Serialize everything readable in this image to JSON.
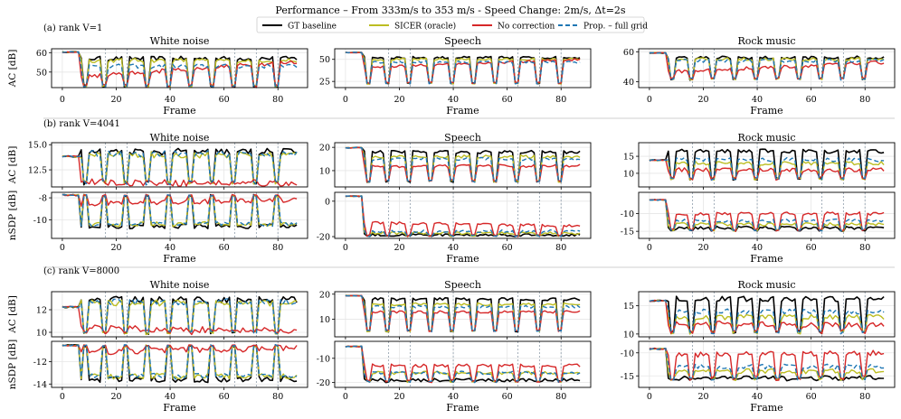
{
  "title": "Performance – From 333m/s to 353 m/s - Speed Change: 2m/s, Δt=2s",
  "legend": [
    {
      "label": "GT baseline",
      "color": "#000000",
      "dash": false
    },
    {
      "label": "SICER (oracle)",
      "color": "#bcbd22",
      "dash": false
    },
    {
      "label": "No correction",
      "color": "#d62728",
      "dash": false
    },
    {
      "label": "Prop. – full grid",
      "color": "#1f77b4",
      "dash": true
    }
  ],
  "xlabel": "Frame",
  "xticks": [
    0,
    20,
    40,
    60,
    80
  ],
  "chart_data": {
    "type": "line",
    "frames": 88,
    "xlim": [
      -4,
      91
    ],
    "sections": [
      {
        "label": "(a) rank V=1",
        "rows": [
          {
            "ylabel": "AC [dB]",
            "panels": [
              {
                "title": "White noise",
                "ylim": [
                  42,
                  62
                ],
                "yticks": [
                  50,
                  60
                ],
                "gt": 57,
                "prop": 53,
                "noc": 47,
                "sic": 56,
                "low": 42,
                "high": 60.5,
                "end": 55.5,
                "trend": 1
              },
              {
                "title": "Speech",
                "ylim": [
                  18,
                  62
                ],
                "yticks": [
                  25,
                  50
                ],
                "gt": 52,
                "prop": 47,
                "noc": 40,
                "sic": 50,
                "low": 22,
                "high": 58,
                "end": 50,
                "trend": 0
              },
              {
                "title": "Rock music",
                "ylim": [
                  36,
                  62
                ],
                "yticks": [
                  40,
                  60
                ],
                "gt": 56,
                "prop": 54,
                "noc": 46,
                "sic": 55,
                "low": 41,
                "high": 59.5,
                "end": 53,
                "trend": 1
              }
            ]
          }
        ]
      },
      {
        "label": "(b) rank V=4041",
        "rows": [
          {
            "ylabel": "AC [dB]",
            "panels": [
              {
                "title": "White noise",
                "ylim": [
                  10.8,
                  15.2
                ],
                "yticks": [
                  12.5,
                  15.0
                ],
                "gt": 14.3,
                "prop": 14.1,
                "noc": 11.3,
                "sic": 14.0,
                "low": 11.0,
                "high": 13.9,
                "end": 11.1,
                "trend": 1
              },
              {
                "title": "Speech",
                "ylim": [
                  3,
                  22
                ],
                "yticks": [
                  10,
                  20
                ],
                "gt": 18,
                "prop": 15,
                "noc": 12,
                "sic": 16,
                "low": 5,
                "high": 20,
                "end": 12,
                "trend": 0
              },
              {
                "title": "Rock music",
                "ylim": [
                  6,
                  19
                ],
                "yticks": [
                  10,
                  15
                ],
                "gt": 16.5,
                "prop": 14,
                "noc": 11,
                "sic": 13,
                "low": 8,
                "high": 14,
                "end": 11,
                "trend": 0
              }
            ]
          },
          {
            "ylabel": "nSDP [dB]",
            "panels": [
              {
                "title": "",
                "ylim": [
                  -11.7,
                  -7.5
                ],
                "yticks": [
                  -10,
                  -8
                ],
                "gt": -10.6,
                "prop": -10.4,
                "noc": -8.6,
                "sic": -10.4,
                "low": -11.4,
                "high": -7.7,
                "end": -8.2,
                "trend": -1
              },
              {
                "title": "",
                "ylim": [
                  -21,
                  5
                ],
                "yticks": [
                  -20,
                  0
                ],
                "gt": -19,
                "prop": -17,
                "noc": -12,
                "sic": -18,
                "low": -20,
                "high": 3,
                "end": -14,
                "trend": 0
              },
              {
                "title": "",
                "ylim": [
                  -17,
                  -4
                ],
                "yticks": [
                  -15,
                  -10
                ],
                "gt": -14,
                "prop": -12,
                "noc": -10,
                "sic": -13,
                "low": -15,
                "high": -6,
                "end": -10,
                "trend": 0
              }
            ]
          }
        ]
      },
      {
        "label": "(c) rank V=8000",
        "rows": [
          {
            "ylabel": "AC [dB]",
            "panels": [
              {
                "title": "White noise",
                "ylim": [
                  9.6,
                  13.6
                ],
                "yticks": [
                  10,
                  12
                ],
                "gt": 12.9,
                "prop": 12.7,
                "noc": 10.4,
                "sic": 12.6,
                "low": 9.8,
                "high": 12.3,
                "end": 10.1,
                "trend": 1
              },
              {
                "title": "Speech",
                "ylim": [
                  3,
                  21
                ],
                "yticks": [
                  10,
                  20
                ],
                "gt": 18,
                "prop": 15,
                "noc": 13,
                "sic": 16,
                "low": 5,
                "high": 19.5,
                "end": 13,
                "trend": 0
              },
              {
                "title": "Rock music",
                "ylim": [
                  9.5,
                  17.5
                ],
                "yticks": [
                  10,
                  15
                ],
                "gt": 16.2,
                "prop": 14,
                "noc": 12,
                "sic": 13,
                "low": 10,
                "high": 16,
                "end": 11.5,
                "trend": 0
              }
            ]
          },
          {
            "ylabel": "nSDP [dB]",
            "panels": [
              {
                "title": "",
                "ylim": [
                  -14.3,
                  -10.2
                ],
                "yticks": [
                  -14,
                  -12
                ],
                "gt": -13.6,
                "prop": -13.3,
                "noc": -11.2,
                "sic": -13.3,
                "low": -14.0,
                "high": -10.5,
                "end": -10.8,
                "trend": -1
              },
              {
                "title": "",
                "ylim": [
                  -22,
                  -3
                ],
                "yticks": [
                  -20,
                  -10
                ],
                "gt": -19,
                "prop": -16,
                "noc": -13,
                "sic": -16,
                "low": -20,
                "high": -5,
                "end": -13,
                "trend": 0
              },
              {
                "title": "",
                "ylim": [
                  -17.5,
                  -7.5
                ],
                "yticks": [
                  -15,
                  -10
                ],
                "gt": -15.5,
                "prop": -13,
                "noc": -10.5,
                "sic": -14,
                "low": -16,
                "high": -9,
                "end": -10,
                "trend": 0
              }
            ]
          }
        ]
      }
    ],
    "vlines": [
      16,
      24,
      40,
      64,
      72,
      80
    ],
    "dips": [
      [
        8,
        9
      ],
      [
        15,
        16
      ],
      [
        23,
        24
      ],
      [
        31,
        32
      ],
      [
        39,
        40
      ],
      [
        47,
        48
      ],
      [
        55,
        56
      ],
      [
        63,
        64
      ],
      [
        71,
        72
      ],
      [
        79,
        80
      ]
    ]
  }
}
